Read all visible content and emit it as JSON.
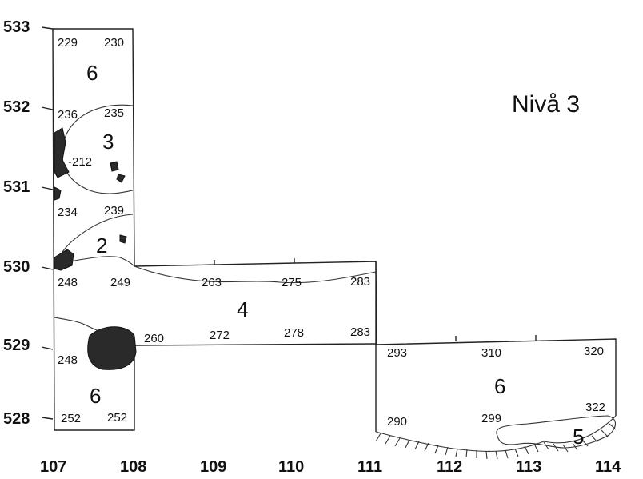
{
  "title": "Nivå 3",
  "y_axis_labels": [
    "533",
    "532",
    "531",
    "530",
    "529",
    "528"
  ],
  "x_axis_labels": [
    "107",
    "108",
    "109",
    "110",
    "111",
    "112",
    "113",
    "114"
  ],
  "elevations": [
    "229",
    "230",
    "236",
    "235",
    "-212",
    "234",
    "239",
    "248",
    "249",
    "263",
    "275",
    "283",
    "260",
    "272",
    "278",
    "283",
    "293",
    "310",
    "320",
    "248",
    "252",
    "252",
    "290",
    "299",
    "322"
  ],
  "layers": [
    "6",
    "3",
    "2",
    "4",
    "6",
    "6",
    "5"
  ]
}
